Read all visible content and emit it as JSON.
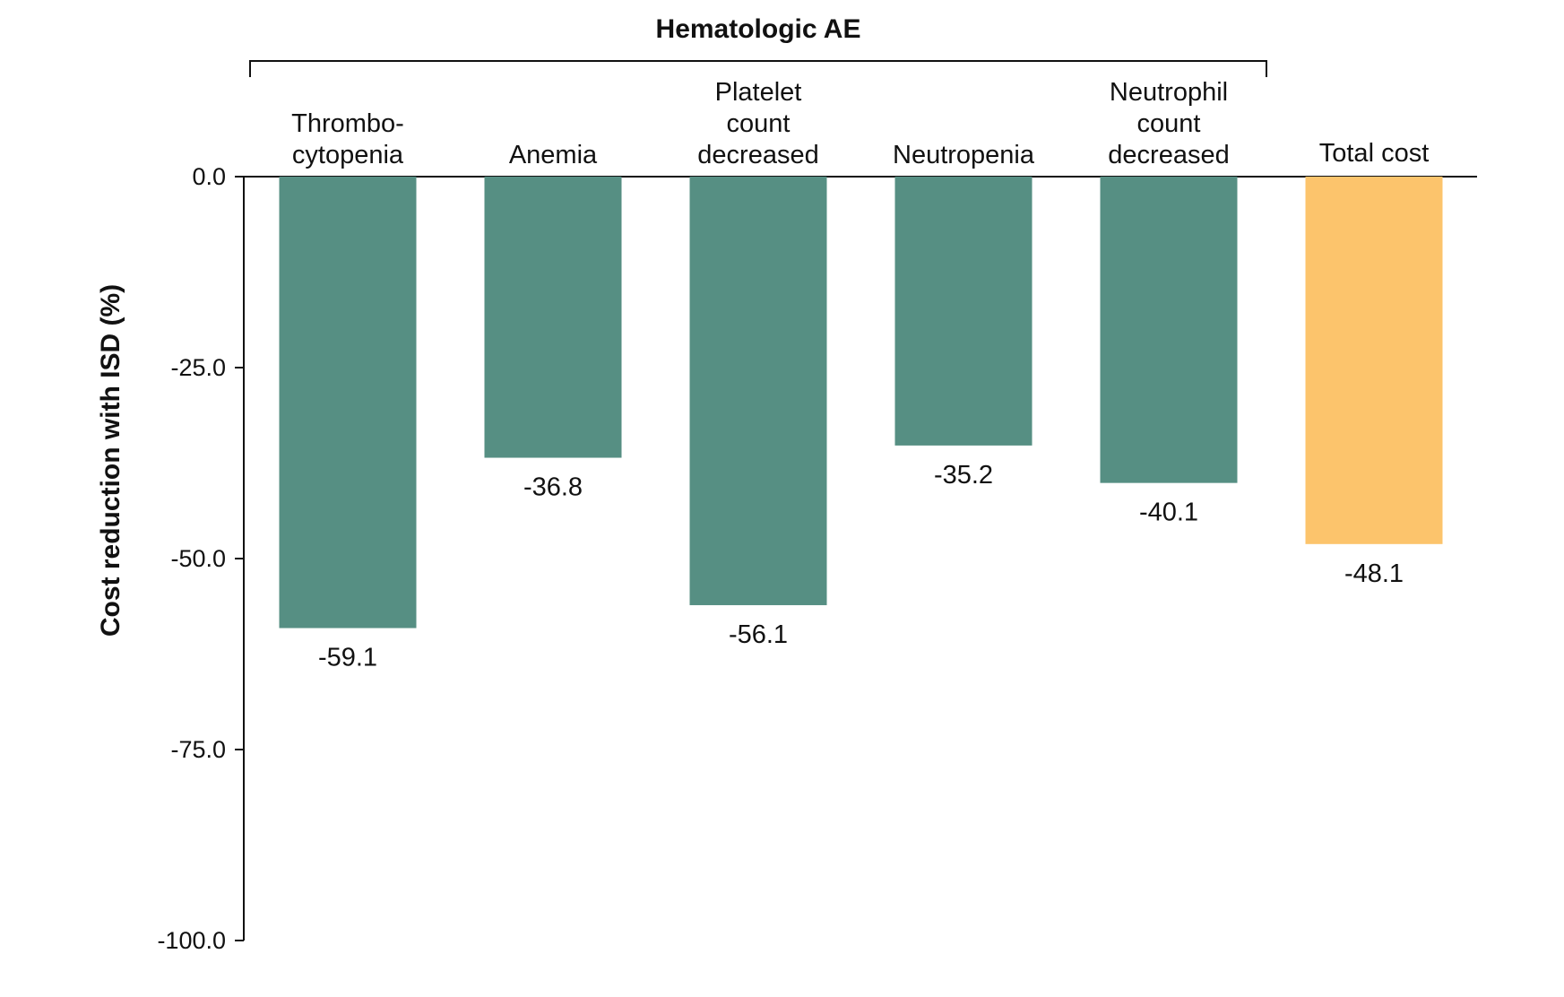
{
  "chart_data": {
    "type": "bar",
    "categories": [
      [
        "Thrombo-",
        "cytopenia"
      ],
      [
        "Anemia"
      ],
      [
        "Platelet",
        "count",
        "decreased"
      ],
      [
        "Neutropenia"
      ],
      [
        "Neutrophil",
        "count",
        "decreased"
      ],
      [
        "Total cost"
      ]
    ],
    "values": [
      -59.1,
      -36.8,
      -56.1,
      -35.2,
      -40.1,
      -48.1
    ],
    "value_labels": [
      "-59.1",
      "-36.8",
      "-56.1",
      "-35.2",
      "-40.1",
      "-48.1"
    ],
    "bar_colors": [
      "#568f83",
      "#568f83",
      "#568f83",
      "#568f83",
      "#568f83",
      "#fcc46c"
    ],
    "ylabel": "Cost reduction with ISD (%)",
    "ylim": [
      -100,
      0
    ],
    "yticks": [
      0,
      -25,
      -50,
      -75,
      -100
    ],
    "ytick_labels": [
      "0.0",
      "-25.0",
      "-50.0",
      "-75.0",
      "-100.0"
    ],
    "group_bracket": {
      "label": "Hematologic AE",
      "span_categories": [
        0,
        4
      ]
    },
    "grid": false,
    "legend": "none"
  }
}
